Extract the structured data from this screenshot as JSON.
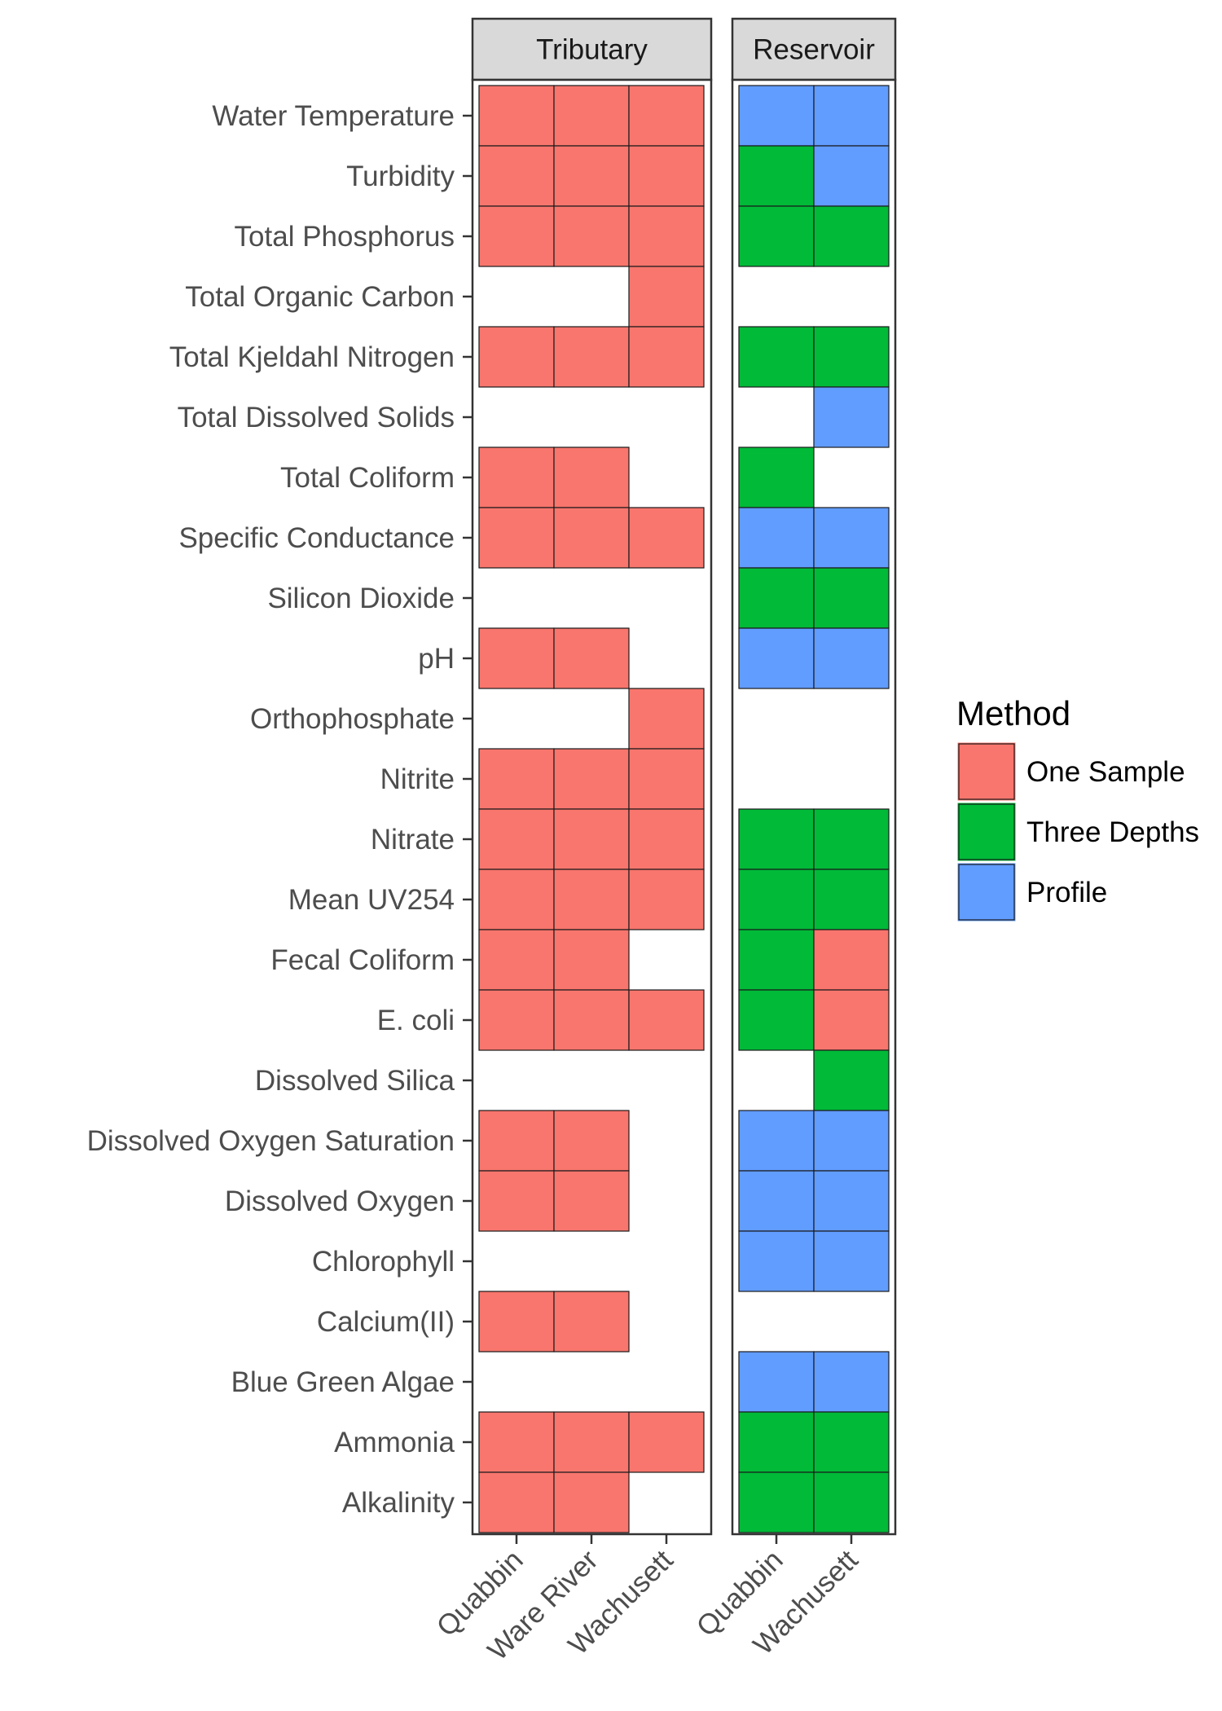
{
  "chart_data": {
    "type": "heatmap",
    "title": "",
    "xlabel": "",
    "ylabel": "",
    "grid": false,
    "legend_position": "right",
    "parameters": [
      "Water Temperature",
      "Turbidity",
      "Total Phosphorus",
      "Total Organic Carbon",
      "Total Kjeldahl Nitrogen",
      "Total Dissolved Solids",
      "Total Coliform",
      "Specific Conductance",
      "Silicon Dioxide",
      "pH",
      "Orthophosphate",
      "Nitrite",
      "Nitrate",
      "Mean UV254",
      "Fecal Coliform",
      "E. coli",
      "Dissolved Silica",
      "Dissolved Oxygen Saturation",
      "Dissolved Oxygen",
      "Chlorophyll",
      "Calcium(II)",
      "Blue Green Algae",
      "Ammonia",
      "Alkalinity"
    ],
    "legend": {
      "title": "Method",
      "items": [
        {
          "key": "one_sample",
          "label": "One Sample",
          "color": "#F8766D"
        },
        {
          "key": "three_depths",
          "label": "Three Depths",
          "color": "#00BA38"
        },
        {
          "key": "profile",
          "label": "Profile",
          "color": "#619CFF"
        }
      ]
    },
    "panels": [
      {
        "name": "Tributary",
        "locations": [
          "Quabbin",
          "Ware River",
          "Wachusett"
        ],
        "cells": [
          [
            "one_sample",
            "one_sample",
            "one_sample"
          ],
          [
            "one_sample",
            "one_sample",
            "one_sample"
          ],
          [
            "one_sample",
            "one_sample",
            "one_sample"
          ],
          [
            null,
            null,
            "one_sample"
          ],
          [
            "one_sample",
            "one_sample",
            "one_sample"
          ],
          [
            null,
            null,
            null
          ],
          [
            "one_sample",
            "one_sample",
            null
          ],
          [
            "one_sample",
            "one_sample",
            "one_sample"
          ],
          [
            null,
            null,
            null
          ],
          [
            "one_sample",
            "one_sample",
            null
          ],
          [
            null,
            null,
            "one_sample"
          ],
          [
            "one_sample",
            "one_sample",
            "one_sample"
          ],
          [
            "one_sample",
            "one_sample",
            "one_sample"
          ],
          [
            "one_sample",
            "one_sample",
            "one_sample"
          ],
          [
            "one_sample",
            "one_sample",
            null
          ],
          [
            "one_sample",
            "one_sample",
            "one_sample"
          ],
          [
            null,
            null,
            null
          ],
          [
            "one_sample",
            "one_sample",
            null
          ],
          [
            "one_sample",
            "one_sample",
            null
          ],
          [
            null,
            null,
            null
          ],
          [
            "one_sample",
            "one_sample",
            null
          ],
          [
            null,
            null,
            null
          ],
          [
            "one_sample",
            "one_sample",
            "one_sample"
          ],
          [
            "one_sample",
            "one_sample",
            null
          ]
        ]
      },
      {
        "name": "Reservoir",
        "locations": [
          "Quabbin",
          "Wachusett"
        ],
        "cells": [
          [
            "profile",
            "profile"
          ],
          [
            "three_depths",
            "profile"
          ],
          [
            "three_depths",
            "three_depths"
          ],
          [
            null,
            null
          ],
          [
            "three_depths",
            "three_depths"
          ],
          [
            null,
            "profile"
          ],
          [
            "three_depths",
            null
          ],
          [
            "profile",
            "profile"
          ],
          [
            "three_depths",
            "three_depths"
          ],
          [
            "profile",
            "profile"
          ],
          [
            null,
            null
          ],
          [
            null,
            null
          ],
          [
            "three_depths",
            "three_depths"
          ],
          [
            "three_depths",
            "three_depths"
          ],
          [
            "three_depths",
            "one_sample"
          ],
          [
            "three_depths",
            "one_sample"
          ],
          [
            null,
            "three_depths"
          ],
          [
            "profile",
            "profile"
          ],
          [
            "profile",
            "profile"
          ],
          [
            "profile",
            "profile"
          ],
          [
            null,
            null
          ],
          [
            "profile",
            "profile"
          ],
          [
            "three_depths",
            "three_depths"
          ],
          [
            "three_depths",
            "three_depths"
          ]
        ]
      }
    ]
  }
}
